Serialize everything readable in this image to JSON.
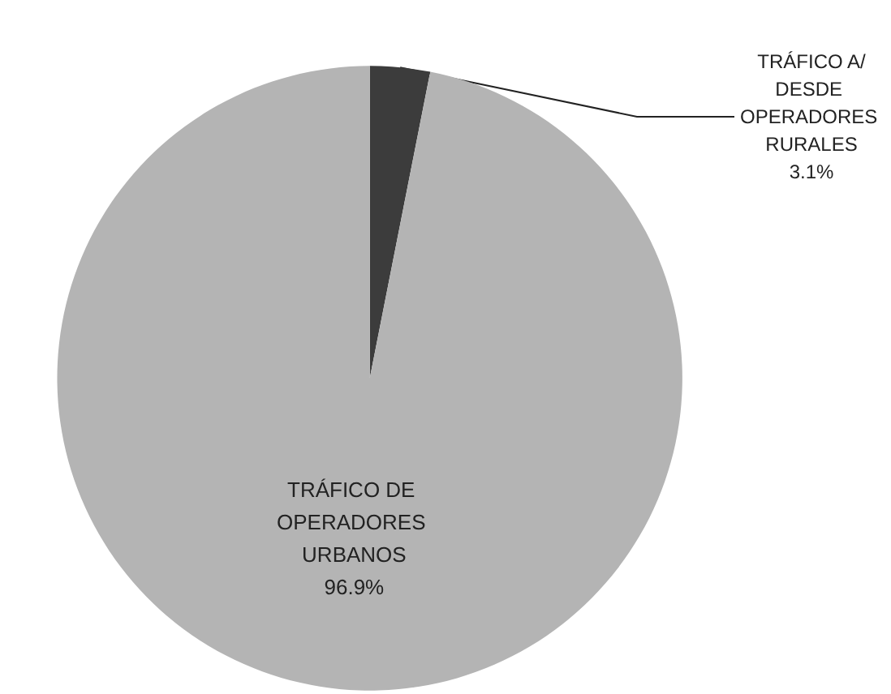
{
  "chart_data": {
    "type": "pie",
    "categories": [
      "TRÁFICO A/DESDE OPERADORES RURALES",
      "TRÁFICO DE OPERADORES URBANOS"
    ],
    "values": [
      3.1,
      96.9
    ],
    "value_labels": [
      "3.1%",
      "96.9%"
    ],
    "colors": [
      "#3c3c3c",
      "#b4b4b4"
    ],
    "legend": false
  }
}
